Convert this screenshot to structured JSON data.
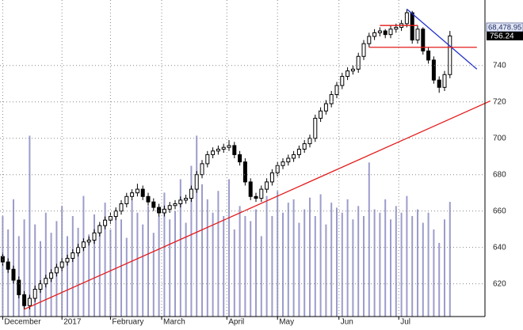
{
  "chart_data": {
    "type": "candlestick",
    "xlim": [
      -0.5,
      89.5
    ],
    "ylim": [
      602,
      776
    ],
    "yticks": [
      620,
      640,
      660,
      680,
      700,
      720,
      740
    ],
    "xticks": [
      {
        "value": 0,
        "label": "December"
      },
      {
        "value": 11,
        "label": "2017"
      },
      {
        "value": 20,
        "label": "February"
      },
      {
        "value": 29.5,
        "label": "March"
      },
      {
        "value": 41.6,
        "label": "April"
      },
      {
        "value": 51,
        "label": "May"
      },
      {
        "value": 62.4,
        "label": "Jun"
      },
      {
        "value": 73.5,
        "label": "Jul"
      }
    ],
    "grid": true,
    "up_color": "#ffffff",
    "down_color": "#000000",
    "candles": [
      [
        635,
        637,
        630,
        632
      ],
      [
        632,
        634,
        626,
        628
      ],
      [
        628,
        630,
        620,
        622
      ],
      [
        622,
        624,
        612,
        614
      ],
      [
        614,
        616,
        606,
        608
      ],
      [
        608,
        614,
        606,
        612
      ],
      [
        612,
        619,
        610,
        617
      ],
      [
        617,
        622,
        615,
        620
      ],
      [
        620,
        625,
        618,
        623
      ],
      [
        623,
        628,
        621,
        626
      ],
      [
        626,
        631,
        624,
        629
      ],
      [
        629,
        634,
        627,
        632
      ],
      [
        632,
        636,
        630,
        634
      ],
      [
        634,
        639,
        632,
        637
      ],
      [
        637,
        642,
        635,
        640
      ],
      [
        640,
        645,
        638,
        643
      ],
      [
        643,
        646,
        641,
        644
      ],
      [
        644,
        650,
        642,
        648
      ],
      [
        648,
        654,
        646,
        652
      ],
      [
        652,
        657,
        650,
        655
      ],
      [
        655,
        659,
        653,
        657
      ],
      [
        657,
        662,
        655,
        660
      ],
      [
        660,
        666,
        658,
        664
      ],
      [
        664,
        670,
        662,
        668
      ],
      [
        668,
        672,
        666,
        670
      ],
      [
        670,
        675,
        668,
        672
      ],
      [
        672,
        674,
        666,
        668
      ],
      [
        668,
        670,
        663,
        665
      ],
      [
        665,
        667,
        660,
        662
      ],
      [
        662,
        664,
        657,
        659
      ],
      [
        659,
        663,
        657,
        661
      ],
      [
        661,
        665,
        659,
        663
      ],
      [
        663,
        666,
        661,
        664
      ],
      [
        664,
        668,
        662,
        666
      ],
      [
        666,
        669,
        664,
        667
      ],
      [
        667,
        674,
        665,
        672
      ],
      [
        672,
        682,
        670,
        680
      ],
      [
        680,
        688,
        678,
        686
      ],
      [
        686,
        693,
        684,
        691
      ],
      [
        691,
        695,
        689,
        693
      ],
      [
        693,
        696,
        691,
        694
      ],
      [
        694,
        697,
        692,
        695
      ],
      [
        695,
        699,
        693,
        696
      ],
      [
        696,
        698,
        689,
        691
      ],
      [
        691,
        693,
        685,
        687
      ],
      [
        687,
        689,
        674,
        676
      ],
      [
        676,
        678,
        666,
        668
      ],
      [
        668,
        670,
        665,
        667
      ],
      [
        667,
        674,
        665,
        672
      ],
      [
        672,
        678,
        670,
        676
      ],
      [
        676,
        683,
        674,
        681
      ],
      [
        681,
        687,
        679,
        685
      ],
      [
        685,
        689,
        683,
        687
      ],
      [
        687,
        691,
        685,
        689
      ],
      [
        689,
        693,
        687,
        691
      ],
      [
        691,
        696,
        689,
        694
      ],
      [
        694,
        699,
        692,
        697
      ],
      [
        697,
        702,
        695,
        700
      ],
      [
        700,
        713,
        698,
        711
      ],
      [
        711,
        717,
        709,
        715
      ],
      [
        715,
        721,
        713,
        719
      ],
      [
        719,
        726,
        717,
        724
      ],
      [
        724,
        731,
        722,
        729
      ],
      [
        729,
        736,
        727,
        734
      ],
      [
        734,
        739,
        732,
        737
      ],
      [
        737,
        740,
        735,
        738
      ],
      [
        738,
        747,
        736,
        745
      ],
      [
        745,
        754,
        743,
        752
      ],
      [
        752,
        758,
        750,
        756
      ],
      [
        756,
        760,
        754,
        758
      ],
      [
        758,
        761,
        756,
        759
      ],
      [
        759,
        760,
        755,
        757
      ],
      [
        757,
        762,
        755,
        760
      ],
      [
        760,
        763,
        758,
        761
      ],
      [
        761,
        765,
        759,
        763
      ],
      [
        763,
        771,
        761,
        769
      ],
      [
        769,
        770,
        752,
        754
      ],
      [
        754,
        762,
        752,
        760
      ],
      [
        760,
        761,
        746,
        748
      ],
      [
        748,
        750,
        741,
        743
      ],
      [
        743,
        745,
        730,
        732
      ],
      [
        732,
        734,
        725,
        728
      ],
      [
        728,
        737,
        726,
        735
      ],
      [
        735,
        759,
        733,
        756.24
      ]
    ],
    "volume": {
      "color": "#9c9ccc",
      "vlim": [
        0,
        189000
      ],
      "last_label": "68,478.95",
      "values": [
        60000,
        52000,
        70000,
        48000,
        58000,
        108000,
        55000,
        45000,
        62000,
        50000,
        57000,
        66000,
        48000,
        60000,
        53000,
        72000,
        49000,
        61000,
        55000,
        68000,
        52000,
        64000,
        58000,
        47000,
        70000,
        62000,
        55000,
        66000,
        50000,
        60000,
        74000,
        58000,
        63000,
        82000,
        56000,
        90000,
        108000,
        79000,
        70000,
        62000,
        75000,
        60000,
        82000,
        52000,
        66000,
        60000,
        57000,
        64000,
        48000,
        72000,
        60000,
        75000,
        62000,
        68000,
        70000,
        56000,
        64000,
        71000,
        60000,
        73000,
        55000,
        68000,
        65000,
        62000,
        70000,
        58000,
        66000,
        60000,
        92000,
        64000,
        62000,
        70000,
        58000,
        66000,
        62000,
        72000,
        60000,
        64000,
        56000,
        62000,
        52000,
        44000,
        58000,
        68478.95
      ]
    },
    "lines": [
      {
        "color": "#e41a1a",
        "x": [
          4,
          90.5
        ],
        "y": [
          606,
          720.5
        ]
      },
      {
        "color": "#2233cc",
        "x": [
          75,
          88
        ],
        "y": [
          771,
          738
        ]
      },
      {
        "color": "#e41a1a",
        "x": [
          68,
          88
        ],
        "y": [
          750,
          750
        ]
      },
      {
        "color": "#e41a1a",
        "x": [
          70,
          77
        ],
        "y": [
          762,
          762
        ]
      }
    ]
  }
}
